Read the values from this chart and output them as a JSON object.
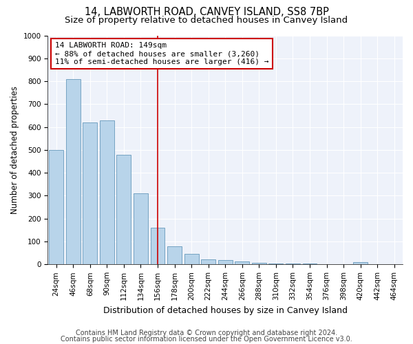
{
  "title": "14, LABWORTH ROAD, CANVEY ISLAND, SS8 7BP",
  "subtitle": "Size of property relative to detached houses in Canvey Island",
  "xlabel": "Distribution of detached houses by size in Canvey Island",
  "ylabel": "Number of detached properties",
  "footer1": "Contains HM Land Registry data © Crown copyright and database right 2024.",
  "footer2": "Contains public sector information licensed under the Open Government Licence v3.0.",
  "categories": [
    "24sqm",
    "46sqm",
    "68sqm",
    "90sqm",
    "112sqm",
    "134sqm",
    "156sqm",
    "178sqm",
    "200sqm",
    "222sqm",
    "244sqm",
    "266sqm",
    "288sqm",
    "310sqm",
    "332sqm",
    "354sqm",
    "376sqm",
    "398sqm",
    "420sqm",
    "442sqm",
    "464sqm"
  ],
  "values": [
    500,
    810,
    620,
    630,
    480,
    310,
    160,
    80,
    45,
    22,
    18,
    12,
    8,
    5,
    3,
    3,
    2,
    2,
    10,
    0,
    0
  ],
  "bar_color": "#b8d4ea",
  "bar_edge_color": "#6699bb",
  "vline_x_index": 6,
  "vline_color": "#cc0000",
  "annotation_line1": "14 LABWORTH ROAD: 149sqm",
  "annotation_line2": "← 88% of detached houses are smaller (3,260)",
  "annotation_line3": "11% of semi-detached houses are larger (416) →",
  "annotation_box_color": "#ffffff",
  "annotation_box_edge": "#cc0000",
  "ylim": [
    0,
    1000
  ],
  "yticks": [
    0,
    100,
    200,
    300,
    400,
    500,
    600,
    700,
    800,
    900,
    1000
  ],
  "background_color": "#eef2fa",
  "title_fontsize": 10.5,
  "subtitle_fontsize": 9.5,
  "xlabel_fontsize": 9,
  "ylabel_fontsize": 8.5,
  "tick_fontsize": 7.5,
  "footer_fontsize": 7,
  "annotation_fontsize": 8
}
